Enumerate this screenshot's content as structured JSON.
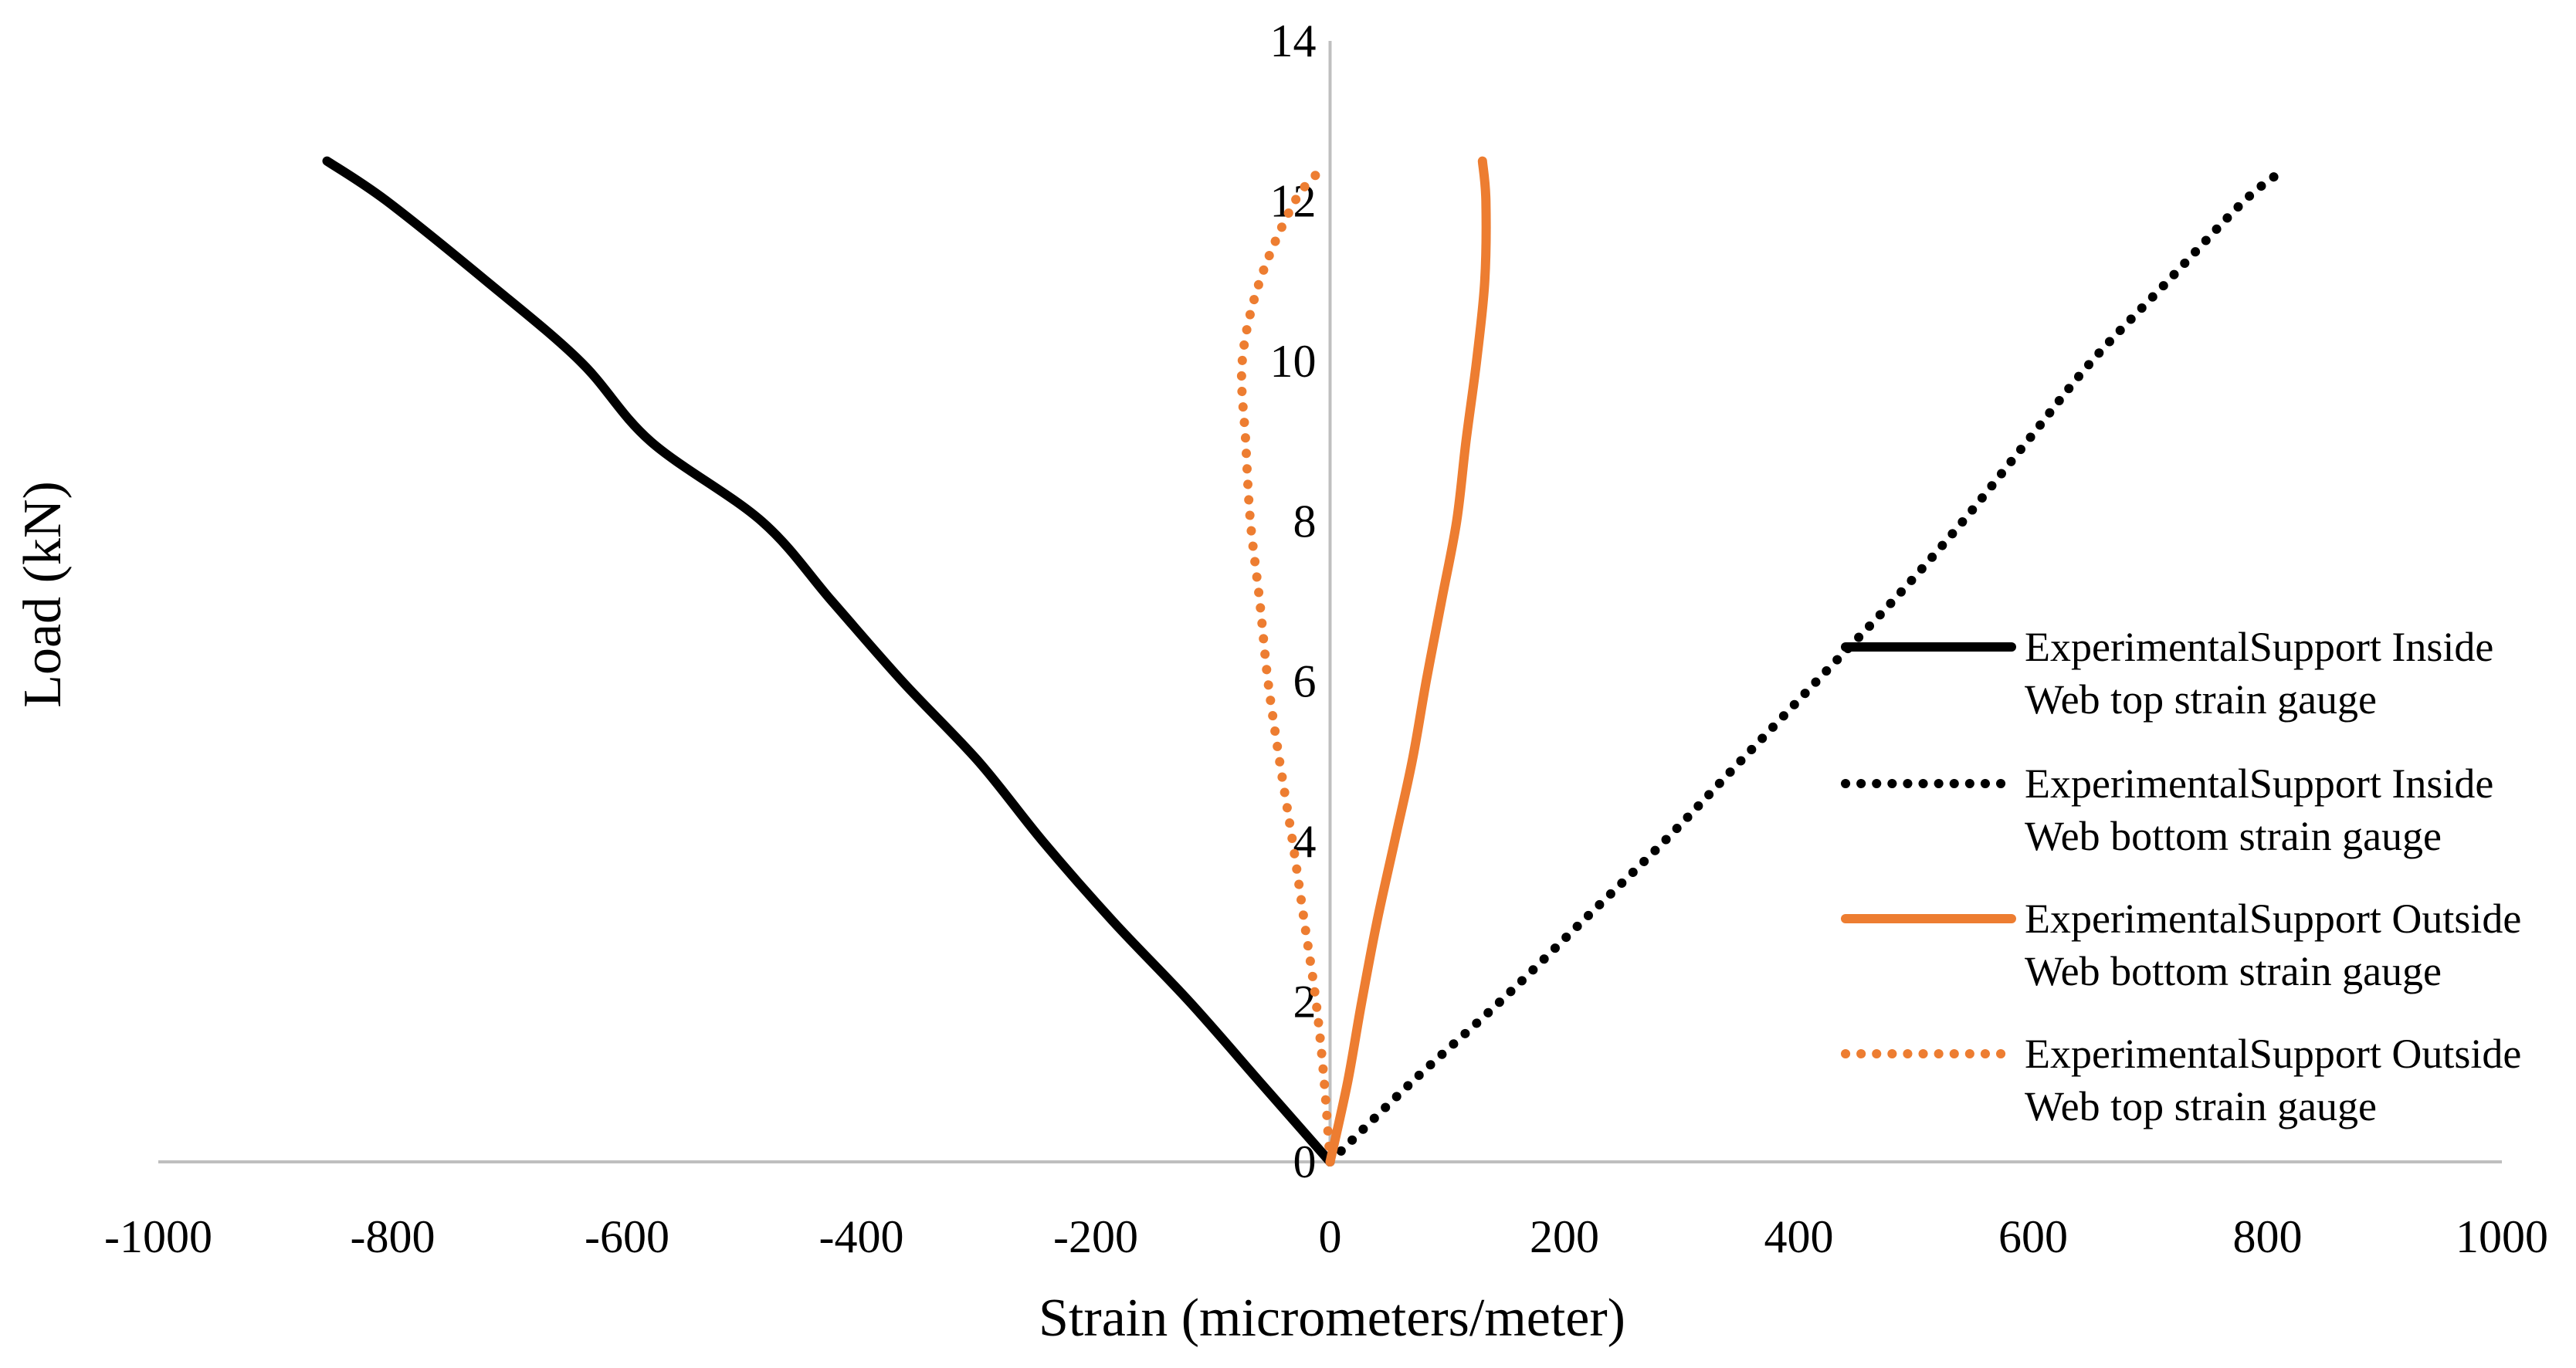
{
  "chart_data": {
    "type": "line",
    "title": "",
    "xlabel": "Strain (micrometers/meter)",
    "ylabel": "Load (kN)",
    "xlim": [
      -1000,
      1000
    ],
    "ylim": [
      0,
      14
    ],
    "xticks": [
      -1000,
      -800,
      -600,
      -400,
      -200,
      0,
      200,
      400,
      600,
      800,
      1000
    ],
    "yticks": [
      0,
      2,
      4,
      6,
      8,
      10,
      12,
      14
    ],
    "grid": false,
    "legend_position": "right",
    "series": [
      {
        "name": "ExperimentalSupport Inside Web top strain gauge",
        "name_lines": [
          "ExperimentalSupport Inside",
          "Web top strain gauge"
        ],
        "color": "#000000",
        "style": "solid",
        "points": [
          [
            0,
            0
          ],
          [
            -60,
            1
          ],
          [
            -120,
            2
          ],
          [
            -185,
            3
          ],
          [
            -245,
            4
          ],
          [
            -300,
            5
          ],
          [
            -365,
            6
          ],
          [
            -425,
            7
          ],
          [
            -485,
            8
          ],
          [
            -580,
            9
          ],
          [
            -640,
            10
          ],
          [
            -720,
            11
          ],
          [
            -805,
            12
          ],
          [
            -856,
            12.5
          ]
        ]
      },
      {
        "name": "ExperimentalSupport Inside Web bottom strain gauge",
        "name_lines": [
          "ExperimentalSupport Inside",
          "Web bottom strain gauge"
        ],
        "color": "#000000",
        "style": "dotted",
        "points": [
          [
            0,
            0
          ],
          [
            70,
            1
          ],
          [
            145,
            2
          ],
          [
            215,
            3
          ],
          [
            285,
            4
          ],
          [
            350,
            5
          ],
          [
            415,
            6
          ],
          [
            480,
            7
          ],
          [
            540,
            8
          ],
          [
            595,
            9
          ],
          [
            650,
            10
          ],
          [
            715,
            11
          ],
          [
            780,
            12
          ],
          [
            815,
            12.4
          ]
        ]
      },
      {
        "name": "ExperimentalSupport Outside Web bottom strain gauge",
        "name_lines": [
          "ExperimentalSupport Outside",
          "Web bottom strain gauge"
        ],
        "color": "#ed7d31",
        "style": "solid",
        "points": [
          [
            0,
            0
          ],
          [
            15,
            1
          ],
          [
            27,
            2
          ],
          [
            40,
            3
          ],
          [
            55,
            4
          ],
          [
            70,
            5
          ],
          [
            82,
            6
          ],
          [
            95,
            7
          ],
          [
            108,
            8
          ],
          [
            116,
            9
          ],
          [
            125,
            10
          ],
          [
            132,
            11
          ],
          [
            133,
            12
          ],
          [
            130,
            12.5
          ]
        ]
      },
      {
        "name": "ExperimentalSupport Outside Web top strain gauge",
        "name_lines": [
          "ExperimentalSupport Outside",
          "Web top strain gauge"
        ],
        "color": "#ed7d31",
        "style": "dotted",
        "points": [
          [
            0,
            0
          ],
          [
            -5,
            1
          ],
          [
            -12,
            2
          ],
          [
            -22,
            3
          ],
          [
            -32,
            4
          ],
          [
            -43,
            5
          ],
          [
            -53,
            6
          ],
          [
            -60,
            7
          ],
          [
            -68,
            8
          ],
          [
            -72,
            9
          ],
          [
            -75,
            10
          ],
          [
            -60,
            11
          ],
          [
            -30,
            12
          ],
          [
            -7,
            12.4
          ]
        ]
      }
    ]
  }
}
